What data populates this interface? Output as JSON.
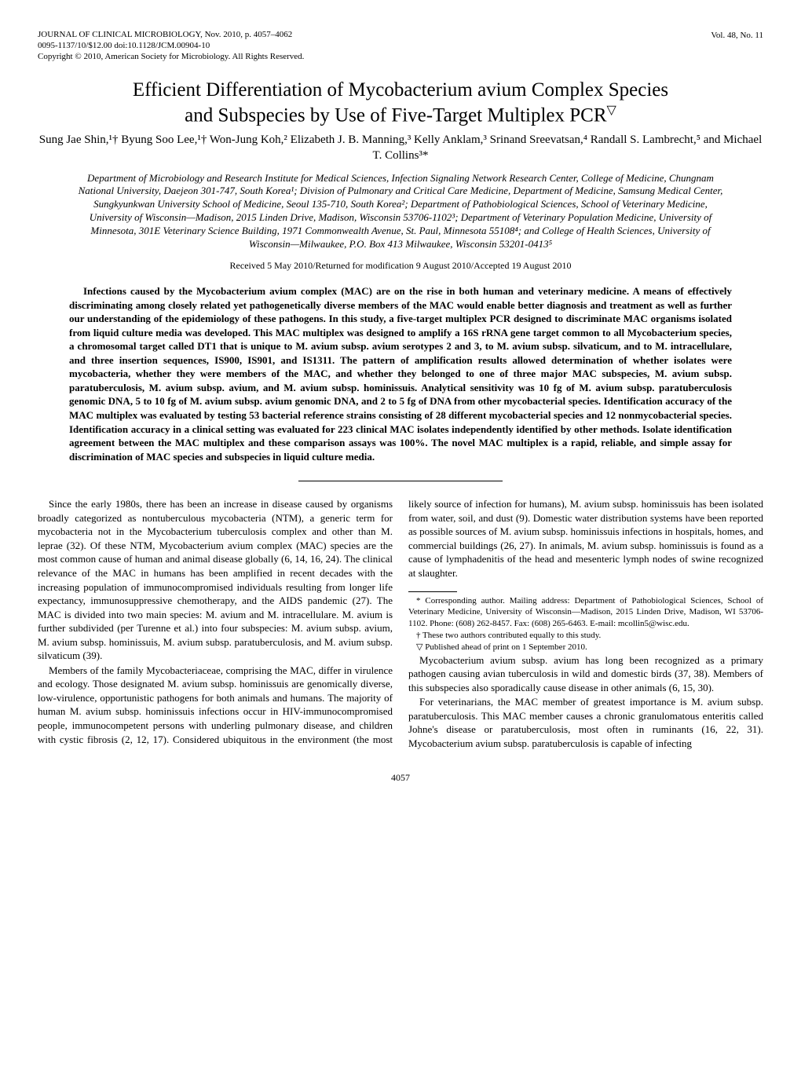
{
  "header": {
    "journal_line1": "JOURNAL OF CLINICAL MICROBIOLOGY, Nov. 2010, p. 4057–4062",
    "journal_line2": "0095-1137/10/$12.00   doi:10.1128/JCM.00904-10",
    "journal_line3": "Copyright © 2010, American Society for Microbiology. All Rights Reserved.",
    "vol_issue": "Vol. 48, No. 11"
  },
  "title": {
    "line1": "Efficient Differentiation of Mycobacterium avium Complex Species",
    "line2": "and Subspecies by Use of Five-Target Multiplex PCR",
    "symbol": "▽"
  },
  "authors": "Sung Jae Shin,¹† Byung Soo Lee,¹† Won-Jung Koh,² Elizabeth J. B. Manning,³ Kelly Anklam,³ Srinand Sreevatsan,⁴ Randall S. Lambrecht,⁵ and Michael T. Collins³*",
  "affiliations": "Department of Microbiology and Research Institute for Medical Sciences, Infection Signaling Network Research Center, College of Medicine, Chungnam National University, Daejeon 301-747, South Korea¹; Division of Pulmonary and Critical Care Medicine, Department of Medicine, Samsung Medical Center, Sungkyunkwan University School of Medicine, Seoul 135-710, South Korea²; Department of Pathobiological Sciences, School of Veterinary Medicine, University of Wisconsin—Madison, 2015 Linden Drive, Madison, Wisconsin 53706-1102³; Department of Veterinary Population Medicine, University of Minnesota, 301E Veterinary Science Building, 1971 Commonwealth Avenue, St. Paul, Minnesota 55108⁴; and College of Health Sciences, University of Wisconsin—Milwaukee, P.O. Box 413 Milwaukee, Wisconsin 53201-0413⁵",
  "received": "Received 5 May 2010/Returned for modification 9 August 2010/Accepted 19 August 2010",
  "abstract": "Infections caused by the Mycobacterium avium complex (MAC) are on the rise in both human and veterinary medicine. A means of effectively discriminating among closely related yet pathogenetically diverse members of the MAC would enable better diagnosis and treatment as well as further our understanding of the epidemiology of these pathogens. In this study, a five-target multiplex PCR designed to discriminate MAC organisms isolated from liquid culture media was developed. This MAC multiplex was designed to amplify a 16S rRNA gene target common to all Mycobacterium species, a chromosomal target called DT1 that is unique to M. avium subsp. avium serotypes 2 and 3, to M. avium subsp. silvaticum, and to M. intracellulare, and three insertion sequences, IS900, IS901, and IS1311. The pattern of amplification results allowed determination of whether isolates were mycobacteria, whether they were members of the MAC, and whether they belonged to one of three major MAC subspecies, M. avium subsp. paratuberculosis, M. avium subsp. avium, and M. avium subsp. hominissuis. Analytical sensitivity was 10 fg of M. avium subsp. paratuberculosis genomic DNA, 5 to 10 fg of M. avium subsp. avium genomic DNA, and 2 to 5 fg of DNA from other mycobacterial species. Identification accuracy of the MAC multiplex was evaluated by testing 53 bacterial reference strains consisting of 28 different mycobacterial species and 12 nonmycobacterial species. Identification accuracy in a clinical setting was evaluated for 223 clinical MAC isolates independently identified by other methods. Isolate identification agreement between the MAC multiplex and these comparison assays was 100%. The novel MAC multiplex is a rapid, reliable, and simple assay for discrimination of MAC species and subspecies in liquid culture media.",
  "body": {
    "p1": "Since the early 1980s, there has been an increase in disease caused by organisms broadly categorized as nontuberculous mycobacteria (NTM), a generic term for mycobacteria not in the Mycobacterium tuberculosis complex and other than M. leprae (32). Of these NTM, Mycobacterium avium complex (MAC) species are the most common cause of human and animal disease globally (6, 14, 16, 24). The clinical relevance of the MAC in humans has been amplified in recent decades with the increasing population of immunocompromised individuals resulting from longer life expectancy, immunosuppressive chemotherapy, and the AIDS pandemic (27). The MAC is divided into two main species: M. avium and M. intracellulare. M. avium is further subdivided (per Turenne et al.) into four subspecies: M. avium subsp. avium, M. avium subsp. hominissuis, M. avium subsp. paratuberculosis, and M. avium subsp. silvaticum (39).",
    "p2": "Members of the family Mycobacteriaceae, comprising the MAC, differ in virulence and ecology. Those designated M. avium subsp. hominissuis are genomically diverse, low-virulence, opportunistic pathogens for both animals and humans. The majority of human M. avium subsp. hominissuis infections occur in HIV-immunocompromised people, immunocompetent persons with underling pulmonary disease, and children with cystic fibrosis (2, 12, 17). Considered ubiquitous in the environment (the most likely source of infection for humans), M. avium subsp. hominissuis has been isolated from water, soil, and dust (9). Domestic water distribution systems have been reported as possible sources of M. avium subsp. hominissuis infections in hospitals, homes, and commercial buildings (26, 27). In animals, M. avium subsp. hominissuis is found as a cause of lymphadenitis of the head and mesenteric lymph nodes of swine recognized at slaughter.",
    "p3": "Mycobacterium avium subsp. avium has long been recognized as a primary pathogen causing avian tuberculosis in wild and domestic birds (37, 38). Members of this subspecies also sporadically cause disease in other animals (6, 15, 30).",
    "p4": "For veterinarians, the MAC member of greatest importance is M. avium subsp. paratuberculosis. This MAC member causes a chronic granulomatous enteritis called Johne's disease or paratuberculosis, most often in ruminants (16, 22, 31). Mycobacterium avium subsp. paratuberculosis is capable of infecting"
  },
  "footnotes": {
    "f1": "* Corresponding author. Mailing address: Department of Pathobiological Sciences, School of Veterinary Medicine, University of Wisconsin—Madison, 2015 Linden Drive, Madison, WI 53706-1102. Phone: (608) 262-8457. Fax: (608) 265-6463. E-mail: mcollin5@wisc.edu.",
    "f2": "† These two authors contributed equally to this study.",
    "f3": "▽ Published ahead of print on 1 September 2010."
  },
  "page_number": "4057"
}
